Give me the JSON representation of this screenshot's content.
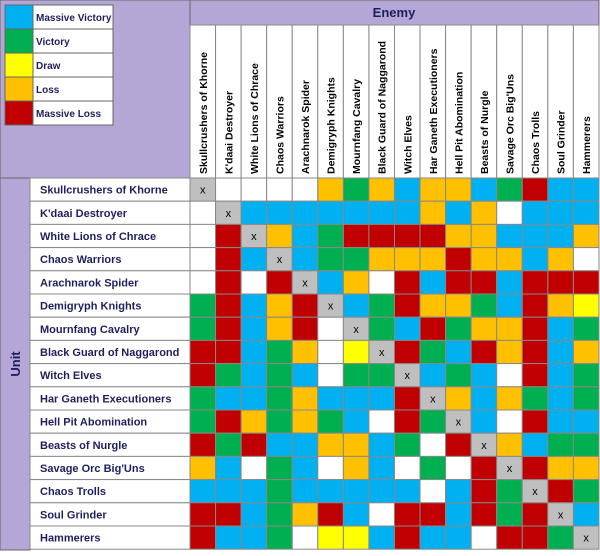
{
  "legend": [
    {
      "label": "Massive Victory",
      "color": "#00b0f0"
    },
    {
      "label": "Victory",
      "color": "#00b050"
    },
    {
      "label": "Draw",
      "color": "#ffff00"
    },
    {
      "label": "Loss",
      "color": "#ffc000"
    },
    {
      "label": "Massive Loss",
      "color": "#c00000"
    }
  ],
  "column_header": "Enemy",
  "row_header": "Unit",
  "columns": [
    "Skullcrushers of Khorne",
    "K'daai Destroyer",
    "White Lions of Chrace",
    "Chaos Warriors",
    "Arachnarok Spider",
    "Demigryph Knights",
    "Mournfang Cavalry",
    "Black Guard of Naggarond",
    "Witch Elves",
    "Har Ganeth Executioners",
    "Hell Pit Abomination",
    "Beasts of Nurgle",
    "Savage Orc Big'Uns",
    "Chaos Trolls",
    "Soul Grinder",
    "Hammerers"
  ],
  "self_mark": "x",
  "rows": [
    {
      "name": "Skullcrushers of Khorne",
      "cells": [
        "x",
        "#ffffff",
        "#ffffff",
        "#ffffff",
        "#ffffff",
        "#ffc000",
        "#00b050",
        "#ffc000",
        "#00b0f0",
        "#ffc000",
        "#ffc000",
        "#00b0f0",
        "#00b050",
        "#c00000",
        "#00b0f0",
        "#00b0f0"
      ]
    },
    {
      "name": "K'daai Destroyer",
      "cells": [
        "#ffffff",
        "x",
        "#00b0f0",
        "#00b0f0",
        "#00b0f0",
        "#00b0f0",
        "#00b0f0",
        "#00b0f0",
        "#00b0f0",
        "#ffc000",
        "#00b0f0",
        "#ffc000",
        "#ffffff",
        "#00b0f0",
        "#00b0f0",
        "#00b0f0"
      ]
    },
    {
      "name": "White Lions of Chrace",
      "cells": [
        "#ffffff",
        "#c00000",
        "x",
        "#ffc000",
        "#00b0f0",
        "#00b050",
        "#c00000",
        "#c00000",
        "#c00000",
        "#c00000",
        "#ffc000",
        "#ffc000",
        "#00b0f0",
        "#00b0f0",
        "#00b0f0",
        "#ffc000"
      ]
    },
    {
      "name": "Chaos Warriors",
      "cells": [
        "#ffffff",
        "#c00000",
        "#00b0f0",
        "x",
        "#00b0f0",
        "#00b050",
        "#00b050",
        "#ffc000",
        "#ffc000",
        "#ffc000",
        "#c00000",
        "#ffc000",
        "#ffc000",
        "#00b0f0",
        "#ffc000",
        "#ffffff"
      ]
    },
    {
      "name": "Arachnarok Spider",
      "cells": [
        "#ffffff",
        "#c00000",
        "#ffffff",
        "#c00000",
        "x",
        "#00b0f0",
        "#ffc000",
        "#ffffff",
        "#c00000",
        "#00b0f0",
        "#c00000",
        "#c00000",
        "#00b0f0",
        "#c00000",
        "#c00000",
        "#c00000"
      ]
    },
    {
      "name": "Demigryph Knights",
      "cells": [
        "#00b050",
        "#c00000",
        "#00b0f0",
        "#ffc000",
        "#c00000",
        "x",
        "#00b0f0",
        "#00b050",
        "#c00000",
        "#ffc000",
        "#ffc000",
        "#00b050",
        "#00b0f0",
        "#c00000",
        "#ffc000",
        "#ffff00"
      ]
    },
    {
      "name": "Mournfang Cavalry",
      "cells": [
        "#00b050",
        "#c00000",
        "#00b0f0",
        "#ffc000",
        "#c00000",
        "#ffffff",
        "x",
        "#00b050",
        "#00b0f0",
        "#c00000",
        "#00b050",
        "#ffc000",
        "#ffc000",
        "#c00000",
        "#00b0f0",
        "#00b050"
      ]
    },
    {
      "name": "Black Guard of Naggarond",
      "cells": [
        "#c00000",
        "#c00000",
        "#00b0f0",
        "#00b050",
        "#ffc000",
        "#ffffff",
        "#ffff00",
        "x",
        "#c00000",
        "#00b050",
        "#00b0f0",
        "#c00000",
        "#ffc000",
        "#c00000",
        "#00b0f0",
        "#ffc000"
      ]
    },
    {
      "name": "Witch Elves",
      "cells": [
        "#c00000",
        "#00b050",
        "#00b0f0",
        "#00b050",
        "#00b0f0",
        "#ffffff",
        "#00b050",
        "#00b050",
        "x",
        "#00b0f0",
        "#00b050",
        "#00b0f0",
        "#ffffff",
        "#c00000",
        "#00b0f0",
        "#00b050"
      ]
    },
    {
      "name": "Har Ganeth Executioners",
      "cells": [
        "#00b050",
        "#00b0f0",
        "#00b0f0",
        "#00b050",
        "#ffc000",
        "#00b0f0",
        "#00b0f0",
        "#00b0f0",
        "#c00000",
        "x",
        "#ffc000",
        "#00b0f0",
        "#ffc000",
        "#00b050",
        "#00b0f0",
        "#00b050"
      ]
    },
    {
      "name": "Hell Pit Abomination",
      "cells": [
        "#00b050",
        "#c00000",
        "#ffc000",
        "#00b050",
        "#ffc000",
        "#00b050",
        "#00b0f0",
        "#ffffff",
        "#c00000",
        "#00b050",
        "x",
        "#00b0f0",
        "#ffffff",
        "#c00000",
        "#00b0f0",
        "#00b0f0"
      ]
    },
    {
      "name": "Beasts of Nurgle",
      "cells": [
        "#c00000",
        "#00b050",
        "#c00000",
        "#00b0f0",
        "#00b0f0",
        "#ffc000",
        "#ffc000",
        "#00b0f0",
        "#00b050",
        "#ffffff",
        "#c00000",
        "x",
        "#ffc000",
        "#00b0f0",
        "#00b050",
        "#00b050"
      ]
    },
    {
      "name": "Savage Orc Big'Uns",
      "cells": [
        "#ffc000",
        "#00b0f0",
        "#ffffff",
        "#00b050",
        "#00b0f0",
        "#ffffff",
        "#ffc000",
        "#00b0f0",
        "#ffffff",
        "#00b050",
        "#ffffff",
        "#c00000",
        "x",
        "#c00000",
        "#ffc000",
        "#ffc000"
      ]
    },
    {
      "name": "Chaos Trolls",
      "cells": [
        "#00b0f0",
        "#00b0f0",
        "#00b0f0",
        "#00b050",
        "#00b0f0",
        "#00b0f0",
        "#00b0f0",
        "#00b0f0",
        "#00b0f0",
        "#ffffff",
        "#00b0f0",
        "#c00000",
        "#00b050",
        "x",
        "#c00000",
        "#00b050"
      ]
    },
    {
      "name": "Soul Grinder",
      "cells": [
        "#c00000",
        "#c00000",
        "#00b0f0",
        "#00b050",
        "#ffc000",
        "#c00000",
        "#00b0f0",
        "#ffffff",
        "#c00000",
        "#c00000",
        "#00b0f0",
        "#c00000",
        "#00b050",
        "#c00000",
        "x",
        "#00b0f0"
      ]
    },
    {
      "name": "Hammerers",
      "cells": [
        "#c00000",
        "#00b0f0",
        "#00b0f0",
        "#00b050",
        "#ffffff",
        "#ffff00",
        "#ffff00",
        "#00b0f0",
        "#c00000",
        "#00b0f0",
        "#00b0f0",
        "#ffffff",
        "#c00000",
        "#c00000",
        "#00b050",
        "x"
      ]
    }
  ]
}
